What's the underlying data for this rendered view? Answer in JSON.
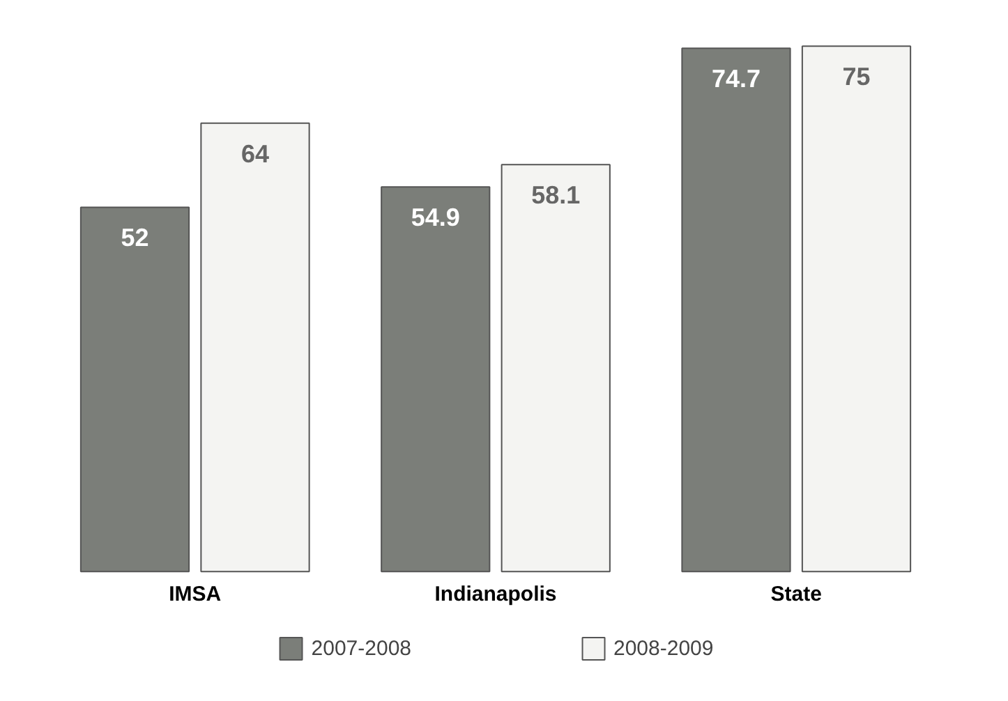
{
  "chart_data": {
    "type": "bar",
    "categories": [
      "IMSA",
      "Indianapolis",
      "State"
    ],
    "series": [
      {
        "name": "2007-2008",
        "color": "#7b7e79",
        "values": [
          52,
          54.9,
          74.7
        ]
      },
      {
        "name": "2008-2009",
        "color": "#f4f4f2",
        "values": [
          64,
          58.1,
          75
        ]
      }
    ],
    "data_labels": true,
    "legend": "bottom",
    "grid": false
  }
}
